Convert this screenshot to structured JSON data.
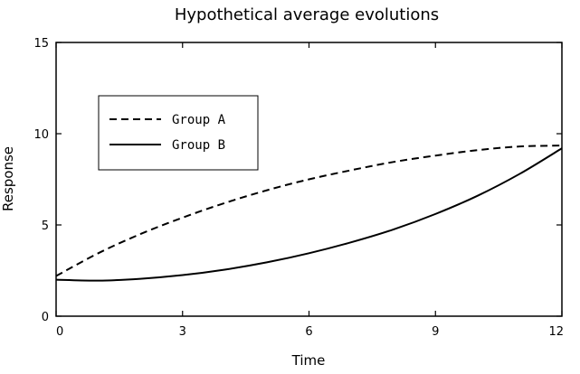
{
  "chart_data": {
    "type": "line",
    "title": "Hypothetical average evolutions",
    "xlabel": "Time",
    "ylabel": "Response",
    "xlim": [
      0,
      12
    ],
    "ylim": [
      0,
      15
    ],
    "xticks": [
      0,
      3,
      6,
      9,
      12
    ],
    "yticks": [
      0,
      5,
      10,
      15
    ],
    "x": [
      0,
      1,
      2,
      3,
      4,
      5,
      6,
      7,
      8,
      9,
      10,
      11,
      12
    ],
    "series": [
      {
        "name": "Group A",
        "style": "dashed",
        "color": "#000000",
        "values": [
          2.2,
          3.45,
          4.5,
          5.4,
          6.2,
          6.9,
          7.5,
          8.0,
          8.45,
          8.8,
          9.1,
          9.3,
          9.35
        ]
      },
      {
        "name": "Group B",
        "style": "solid",
        "color": "#000000",
        "values": [
          2.0,
          1.95,
          2.05,
          2.25,
          2.55,
          2.95,
          3.45,
          4.05,
          4.75,
          5.6,
          6.6,
          7.8,
          9.2
        ]
      }
    ],
    "legend_position": "top-left",
    "grid": false
  }
}
